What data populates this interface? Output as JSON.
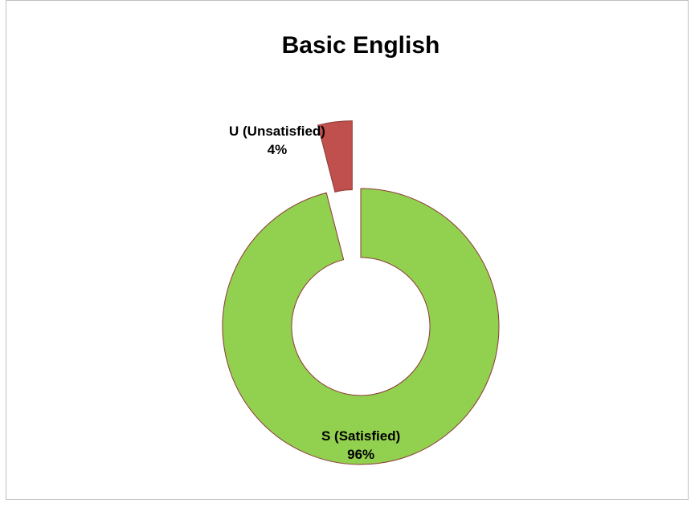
{
  "chart_data": {
    "type": "donut",
    "title": "Basic English",
    "categories": [
      "S (Satisfied)",
      "U (Unsatisfied)"
    ],
    "values": [
      96,
      4
    ],
    "value_labels": [
      "96%",
      "4%"
    ],
    "colors": [
      "#92d050",
      "#c0504d"
    ]
  }
}
